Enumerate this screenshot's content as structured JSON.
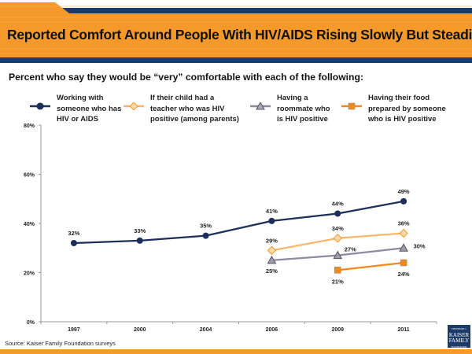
{
  "header": {
    "title": "Reported Comfort Around People With HIV/AIDS Rising Slowly But Steadily"
  },
  "colors": {
    "orange": "#f59a2a",
    "navy": "#1b3c6b"
  },
  "chart_data": {
    "type": "line",
    "title": "Reported Comfort Around People With HIV/AIDS Rising Slowly But Steadily",
    "subtitle": "Percent who say they would be “very” comfortable with each of the following:",
    "categories": [
      "1997",
      "2000",
      "2004",
      "2006",
      "2009",
      "2011"
    ],
    "ylim": [
      0,
      80
    ],
    "yticks": [
      "0%",
      "20%",
      "40%",
      "60%",
      "80%"
    ],
    "grid": false,
    "legend": "top",
    "series": [
      {
        "name": "Working with someone who has HIV or AIDS",
        "color": "#1b2f5a",
        "marker": "circle",
        "values": [
          32,
          33,
          35,
          41,
          44,
          49
        ],
        "labels": [
          "32%",
          "33%",
          "35%",
          "41%",
          "44%",
          "49%"
        ]
      },
      {
        "name": "If their child had a teacher who was HIV positive (among parents)",
        "color": "#f9b56a",
        "marker": "diamond",
        "values": [
          null,
          null,
          null,
          29,
          34,
          36
        ],
        "labels": [
          "",
          "",
          "",
          "29%",
          "34%",
          "36%"
        ]
      },
      {
        "name": "Having a roommate who is HIV positive",
        "color": "#8a8aa0",
        "marker": "triangle",
        "values": [
          null,
          null,
          null,
          25,
          27,
          30
        ],
        "labels": [
          "",
          "",
          "",
          "25%",
          "27%",
          "30%"
        ]
      },
      {
        "name": "Having their food prepared by someone who is HIV positive",
        "color": "#f08a1e",
        "marker": "square",
        "values": [
          null,
          null,
          null,
          null,
          21,
          24
        ],
        "labels": [
          "",
          "",
          "",
          "",
          "21%",
          "24%"
        ]
      }
    ]
  },
  "footer": {
    "source": "Source: Kaiser Family Foundation surveys",
    "logo_text": "THE HENRY J. KAISER FAMILY FOUNDATION"
  }
}
